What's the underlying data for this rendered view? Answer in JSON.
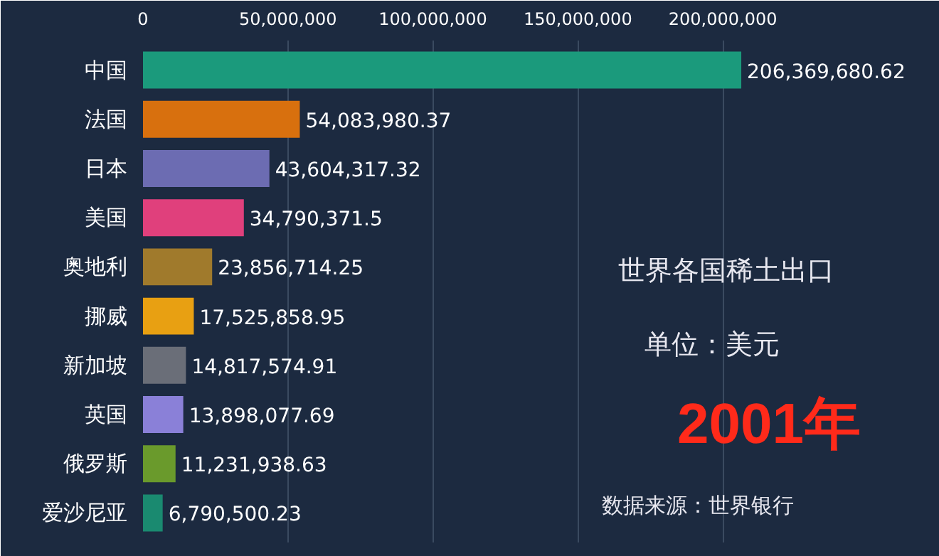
{
  "chart_data": {
    "type": "bar",
    "orientation": "horizontal",
    "title": "世界各国稀土出口",
    "subtitle": "单位：美元",
    "annotations": [
      "2001年",
      "数据来源：世界银行"
    ],
    "categories": [
      "中国",
      "法国",
      "日本",
      "美国",
      "奥地利",
      "挪威",
      "新加坡",
      "英国",
      "俄罗斯",
      "爱沙尼亚"
    ],
    "values": [
      206369680.62,
      54083980.37,
      43604317.32,
      34790371.5,
      23856714.25,
      17525858.95,
      14817574.91,
      13898077.69,
      11231938.63,
      6790500.23
    ],
    "value_labels": [
      "206,369,680.62",
      "54,083,980.37",
      "43,604,317.32",
      "34,790,371.5",
      "23,856,714.25",
      "17,525,858.95",
      "14,817,574.91",
      "13,898,077.69",
      "11,231,938.63",
      "6,790,500.23"
    ],
    "colors": [
      "#1b9a7c",
      "#d8700e",
      "#6c6cb2",
      "#e0407c",
      "#a07a2c",
      "#e8a012",
      "#6a6e78",
      "#8a80d8",
      "#6a9a2c",
      "#1a8a70"
    ],
    "xlim": [
      0,
      265000000
    ],
    "xticks": [
      0,
      {
        "value": 50000000,
        "label": "50,000,000"
      },
      {
        "value": 100000000,
        "label": "100,000,000"
      },
      {
        "value": 150000000,
        "label": "150,000,000"
      },
      {
        "value": 200000000,
        "label": "200,000,000"
      }
    ],
    "grid": "x"
  }
}
